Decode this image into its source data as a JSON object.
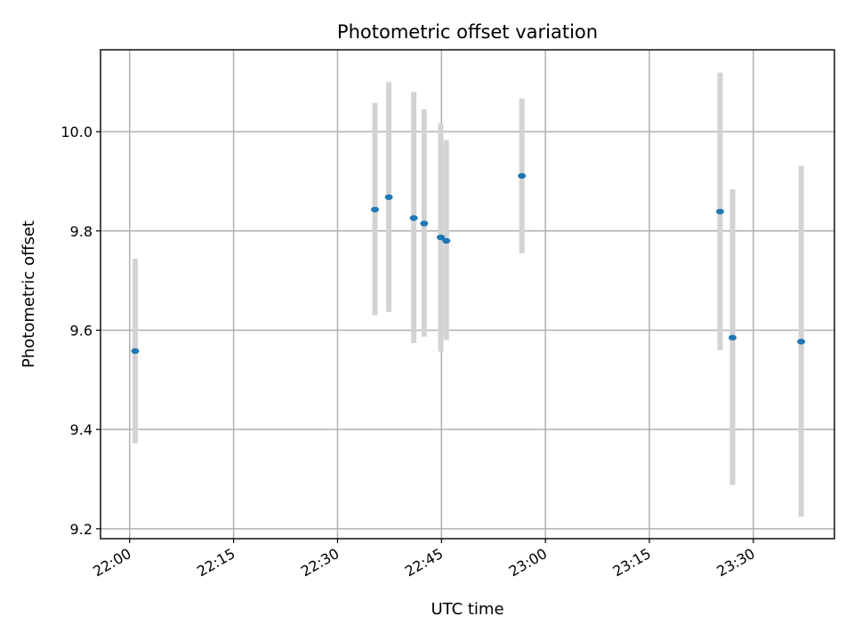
{
  "chart_data": {
    "type": "scatter",
    "title": "Photometric offset variation",
    "xlabel": "UTC time",
    "ylabel": "Photometric offset",
    "x_ticks": [
      "22:00",
      "22:15",
      "22:30",
      "22:45",
      "23:00",
      "23:15",
      "23:30"
    ],
    "x_tick_values": [
      "22:00",
      "22:15",
      "22:30",
      "22:45",
      "23:00",
      "23:15",
      "23:30"
    ],
    "xlim": [
      "21:55.8",
      "23:41.7"
    ],
    "y_ticks": [
      "9.2",
      "9.4",
      "9.6",
      "9.8",
      "10.0"
    ],
    "y_tick_values": [
      9.2,
      9.4,
      9.6,
      9.8,
      10.0
    ],
    "ylim": [
      9.18,
      10.165
    ],
    "grid": true,
    "colors": {
      "point": "#1f77b4",
      "error_bar": "#d3d3d3"
    },
    "points": [
      {
        "x": "22:00.8",
        "y": 9.558,
        "y_low": 9.372,
        "y_high": 9.744
      },
      {
        "x": "22:35.4",
        "y": 9.843,
        "y_low": 9.63,
        "y_high": 10.058
      },
      {
        "x": "22:37.4",
        "y": 9.868,
        "y_low": 9.637,
        "y_high": 10.1
      },
      {
        "x": "22:41.0",
        "y": 9.826,
        "y_low": 9.574,
        "y_high": 10.08
      },
      {
        "x": "22:42.5",
        "y": 9.815,
        "y_low": 9.587,
        "y_high": 10.045
      },
      {
        "x": "22:44.9",
        "y": 9.787,
        "y_low": 9.557,
        "y_high": 10.017
      },
      {
        "x": "22:45.7",
        "y": 9.78,
        "y_low": 9.58,
        "y_high": 9.983
      },
      {
        "x": "22:56.6",
        "y": 9.911,
        "y_low": 9.755,
        "y_high": 10.067
      },
      {
        "x": "23:25.2",
        "y": 9.839,
        "y_low": 9.56,
        "y_high": 10.119
      },
      {
        "x": "23:27.0",
        "y": 9.585,
        "y_low": 9.288,
        "y_high": 9.884
      },
      {
        "x": "23:36.9",
        "y": 9.577,
        "y_low": 9.224,
        "y_high": 9.931
      }
    ]
  }
}
